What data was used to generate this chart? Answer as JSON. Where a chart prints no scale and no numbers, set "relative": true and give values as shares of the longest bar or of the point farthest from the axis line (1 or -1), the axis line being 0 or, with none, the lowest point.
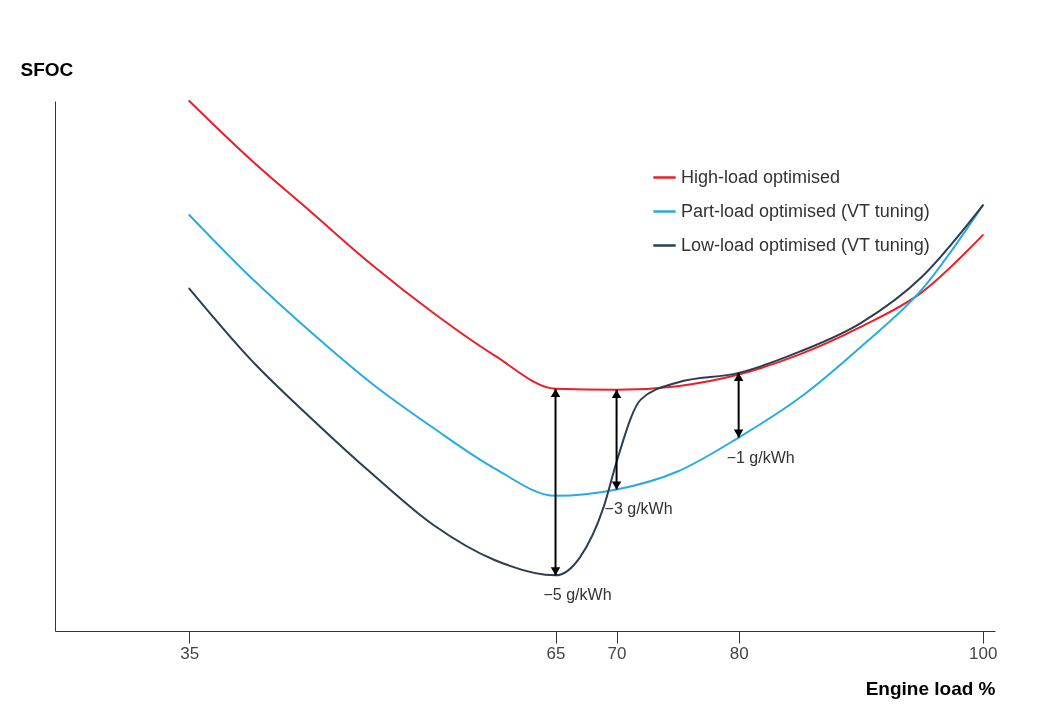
{
  "chart_data": {
    "type": "line",
    "xlabel": "Engine load %",
    "ylabel": "SFOC",
    "relative": true,
    "xlim": [
      24,
      101
    ],
    "xticks": [
      35,
      65,
      70,
      80,
      100
    ],
    "legend": "top right",
    "grid": false,
    "series": [
      {
        "name": "High-load optimised",
        "color": "#e8202a",
        "x": [
          35,
          40,
          45,
          50,
          55,
          60,
          65,
          70,
          75,
          80,
          85,
          90,
          95,
          100
        ],
        "values": [
          1.0,
          0.89,
          0.79,
          0.69,
          0.6,
          0.52,
          0.457,
          0.455,
          0.462,
          0.484,
          0.522,
          0.574,
          0.639,
          0.747
        ]
      },
      {
        "name": "Part-load optimised (VT tuning)",
        "color": "#29abe2",
        "x": [
          35,
          40,
          45,
          50,
          55,
          60,
          65,
          70,
          75,
          80,
          85,
          90,
          95,
          100
        ],
        "values": [
          0.785,
          0.668,
          0.563,
          0.466,
          0.383,
          0.307,
          0.255,
          0.267,
          0.301,
          0.365,
          0.44,
          0.536,
          0.644,
          0.803
        ]
      },
      {
        "name": "Low-load optimised (VT tuning)",
        "color": "#2d3e50",
        "x": [
          35,
          40,
          45,
          50,
          55,
          60,
          65,
          67,
          69,
          70,
          72,
          75,
          80,
          85,
          90,
          95,
          100
        ],
        "values": [
          0.646,
          0.513,
          0.401,
          0.296,
          0.2,
          0.134,
          0.105,
          0.139,
          0.238,
          0.319,
          0.437,
          0.469,
          0.487,
          0.527,
          0.581,
          0.668,
          0.803
        ]
      }
    ],
    "annotations": [
      {
        "text": "−5 g/kWh",
        "x": 65,
        "y": 0.105
      },
      {
        "text": "−3 g/kWh",
        "x": 70,
        "y": 0.267
      },
      {
        "text": "−1 g/kWh",
        "x": 80,
        "y": 0.365
      }
    ]
  }
}
